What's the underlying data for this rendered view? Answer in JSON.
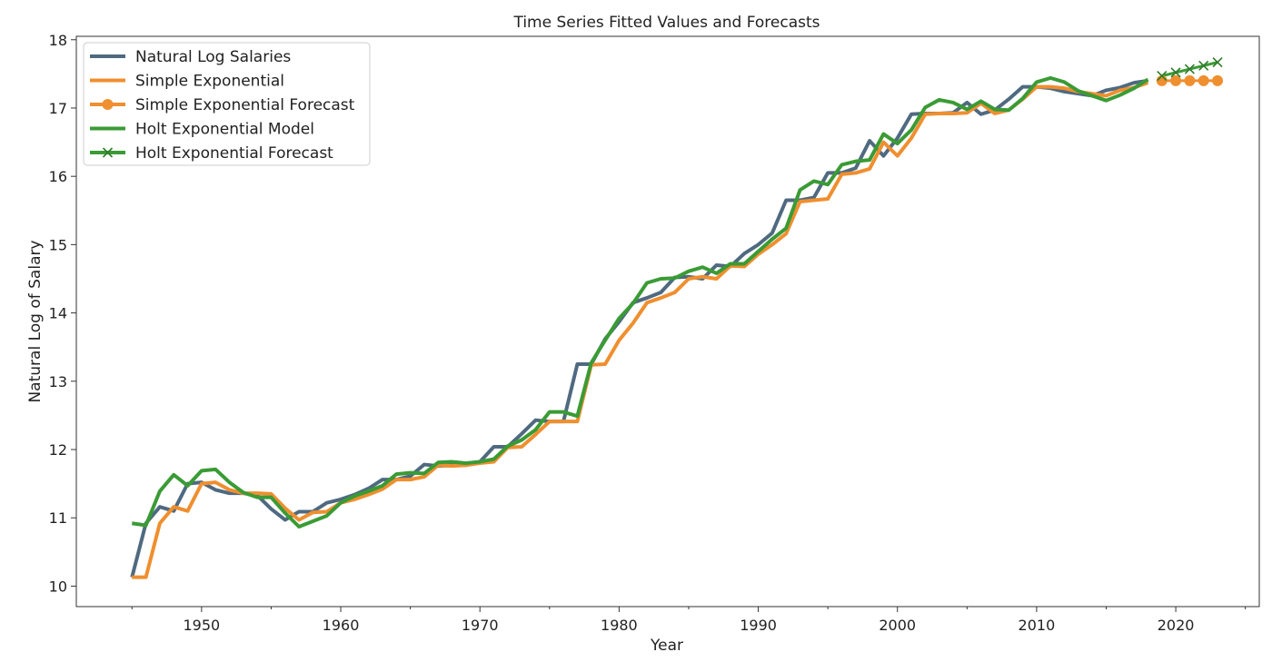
{
  "chart_data": {
    "type": "line",
    "title": "Time Series Fitted Values and Forecasts",
    "xlabel": "Year",
    "ylabel": "Natural Log of Salary",
    "xlim": [
      1941,
      2026
    ],
    "ylim": [
      9.7,
      18.05
    ],
    "xticks": [
      1950,
      1960,
      1970,
      1980,
      1990,
      2000,
      2010,
      2020
    ],
    "yticks": [
      10,
      11,
      12,
      13,
      14,
      15,
      16,
      17,
      18
    ],
    "grid": false,
    "legend_position": "top-left",
    "series": [
      {
        "name": "Natural Log Salaries",
        "color": "#4f6a80",
        "marker": "none",
        "x": [
          1945,
          1946,
          1947,
          1948,
          1949,
          1950,
          1951,
          1952,
          1953,
          1954,
          1955,
          1956,
          1957,
          1958,
          1959,
          1960,
          1961,
          1962,
          1963,
          1964,
          1965,
          1966,
          1967,
          1968,
          1969,
          1970,
          1971,
          1972,
          1973,
          1974,
          1975,
          1976,
          1977,
          1978,
          1979,
          1980,
          1981,
          1982,
          1983,
          1984,
          1985,
          1986,
          1987,
          1988,
          1989,
          1990,
          1991,
          1992,
          1993,
          1994,
          1995,
          1996,
          1997,
          1998,
          1999,
          2000,
          2001,
          2002,
          2003,
          2004,
          2005,
          2006,
          2007,
          2008,
          2009,
          2010,
          2011,
          2012,
          2013,
          2014,
          2015,
          2016,
          2017,
          2018
        ],
        "y": [
          10.13,
          10.92,
          11.16,
          11.1,
          11.5,
          11.52,
          11.41,
          11.36,
          11.36,
          11.33,
          11.13,
          10.97,
          11.09,
          11.09,
          11.22,
          11.27,
          11.34,
          11.43,
          11.56,
          11.56,
          11.61,
          11.78,
          11.76,
          11.77,
          11.8,
          11.82,
          12.04,
          12.04,
          12.23,
          12.43,
          12.41,
          12.41,
          13.25,
          13.25,
          13.62,
          13.87,
          14.15,
          14.22,
          14.3,
          14.52,
          14.53,
          14.5,
          14.7,
          14.68,
          14.87,
          15.0,
          15.17,
          15.65,
          15.65,
          15.69,
          16.05,
          16.05,
          16.12,
          16.52,
          16.3,
          16.56,
          16.91,
          16.92,
          16.92,
          16.93,
          17.08,
          16.91,
          16.97,
          17.13,
          17.31,
          17.31,
          17.29,
          17.24,
          17.21,
          17.18,
          17.26,
          17.3,
          17.37,
          17.4
        ]
      },
      {
        "name": "Simple Exponential",
        "color": "#ef8f2f",
        "marker": "none",
        "x": [
          1945,
          1946,
          1947,
          1948,
          1949,
          1950,
          1951,
          1952,
          1953,
          1954,
          1955,
          1956,
          1957,
          1958,
          1959,
          1960,
          1961,
          1962,
          1963,
          1964,
          1965,
          1966,
          1967,
          1968,
          1969,
          1970,
          1971,
          1972,
          1973,
          1974,
          1975,
          1976,
          1977,
          1978,
          1979,
          1980,
          1981,
          1982,
          1983,
          1984,
          1985,
          1986,
          1987,
          1988,
          1989,
          1990,
          1991,
          1992,
          1993,
          1994,
          1995,
          1996,
          1997,
          1998,
          1999,
          2000,
          2001,
          2002,
          2003,
          2004,
          2005,
          2006,
          2007,
          2008,
          2009,
          2010,
          2011,
          2012,
          2013,
          2014,
          2015,
          2016,
          2017,
          2018
        ],
        "y": [
          10.13,
          10.13,
          10.92,
          11.16,
          11.1,
          11.5,
          11.52,
          11.41,
          11.36,
          11.36,
          11.35,
          11.14,
          10.97,
          11.08,
          11.09,
          11.22,
          11.27,
          11.34,
          11.42,
          11.56,
          11.56,
          11.6,
          11.77,
          11.76,
          11.77,
          11.8,
          11.82,
          12.03,
          12.04,
          12.22,
          12.41,
          12.41,
          12.41,
          13.24,
          13.25,
          13.6,
          13.85,
          14.15,
          14.22,
          14.3,
          14.5,
          14.53,
          14.5,
          14.69,
          14.68,
          14.86,
          15.0,
          15.16,
          15.63,
          15.65,
          15.67,
          16.03,
          16.05,
          16.11,
          16.5,
          16.3,
          16.56,
          16.91,
          16.92,
          16.92,
          16.93,
          17.07,
          16.92,
          16.97,
          17.13,
          17.31,
          17.31,
          17.29,
          17.24,
          17.21,
          17.18,
          17.26,
          17.3,
          17.37
        ]
      },
      {
        "name": "Simple Exponential Forecast",
        "color": "#ef8f2f",
        "marker": "circle",
        "x": [
          2019,
          2020,
          2021,
          2022,
          2023
        ],
        "y": [
          17.4,
          17.4,
          17.4,
          17.4,
          17.4
        ]
      },
      {
        "name": "Holt Exponential Model",
        "color": "#3a9b35",
        "marker": "none",
        "x": [
          1945,
          1946,
          1947,
          1948,
          1949,
          1950,
          1951,
          1952,
          1953,
          1954,
          1955,
          1956,
          1957,
          1958,
          1959,
          1960,
          1961,
          1962,
          1963,
          1964,
          1965,
          1966,
          1967,
          1968,
          1969,
          1970,
          1971,
          1972,
          1973,
          1974,
          1975,
          1976,
          1977,
          1978,
          1979,
          1980,
          1981,
          1982,
          1983,
          1984,
          1985,
          1986,
          1987,
          1988,
          1989,
          1990,
          1991,
          1992,
          1993,
          1994,
          1995,
          1996,
          1997,
          1998,
          1999,
          2000,
          2001,
          2002,
          2003,
          2004,
          2005,
          2006,
          2007,
          2008,
          2009,
          2010,
          2011,
          2012,
          2013,
          2014,
          2015,
          2016,
          2017,
          2018
        ],
        "y": [
          10.92,
          10.89,
          11.39,
          11.63,
          11.47,
          11.69,
          11.71,
          11.52,
          11.37,
          11.3,
          11.3,
          11.07,
          10.87,
          10.95,
          11.03,
          11.22,
          11.32,
          11.39,
          11.47,
          11.64,
          11.66,
          11.65,
          11.81,
          11.82,
          11.8,
          11.82,
          11.86,
          12.05,
          12.14,
          12.29,
          12.55,
          12.55,
          12.49,
          13.27,
          13.6,
          13.92,
          14.14,
          14.44,
          14.5,
          14.51,
          14.61,
          14.67,
          14.58,
          14.72,
          14.72,
          14.9,
          15.08,
          15.24,
          15.8,
          15.93,
          15.88,
          16.17,
          16.22,
          16.24,
          16.62,
          16.48,
          16.68,
          17.01,
          17.12,
          17.08,
          16.98,
          17.1,
          16.98,
          16.97,
          17.14,
          17.38,
          17.44,
          17.38,
          17.25,
          17.18,
          17.11,
          17.19,
          17.29,
          17.42
        ]
      },
      {
        "name": "Holt Exponential Forecast",
        "color": "#3a9b35",
        "marker": "x",
        "x": [
          2019,
          2020,
          2021,
          2022,
          2023
        ],
        "y": [
          17.47,
          17.52,
          17.57,
          17.62,
          17.67
        ]
      }
    ]
  }
}
